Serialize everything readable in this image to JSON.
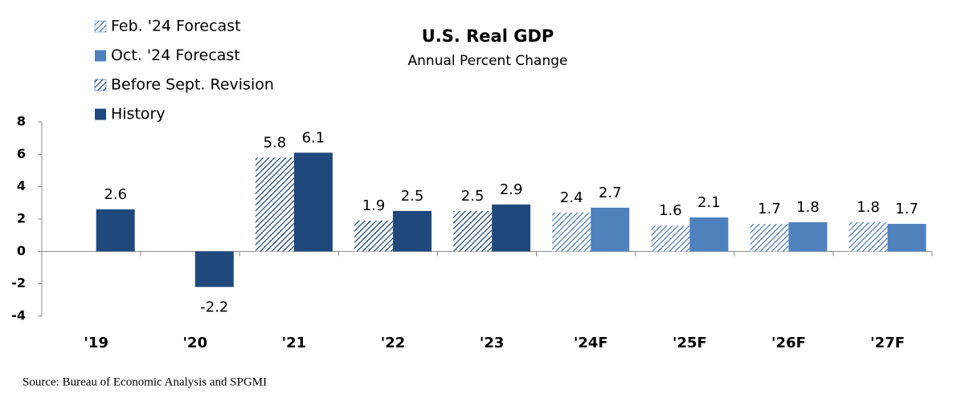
{
  "chart_data": {
    "type": "bar",
    "title": "U.S. Real GDP",
    "subtitle": "Annual Percent Change",
    "categories": [
      "'19",
      "'20",
      "'21",
      "'22",
      "'23",
      "'24F",
      "'25F",
      "'26F",
      "'27F"
    ],
    "series": [
      {
        "name": "Feb. '24 Forecast",
        "color": "#4f81bd",
        "hatch": true,
        "values": [
          null,
          null,
          null,
          null,
          null,
          2.4,
          1.6,
          1.7,
          1.8
        ]
      },
      {
        "name": "Oct. '24 Forecast",
        "color": "#4f81bd",
        "hatch": false,
        "values": [
          null,
          null,
          null,
          null,
          null,
          2.7,
          2.1,
          1.8,
          1.7
        ]
      },
      {
        "name": "Before Sept. Revision",
        "color": "#1f4e79",
        "hatch": true,
        "values": [
          null,
          null,
          5.8,
          1.9,
          2.5,
          null,
          null,
          null,
          null
        ]
      },
      {
        "name": "History",
        "color": "#1f497d",
        "hatch": false,
        "values": [
          2.6,
          -2.2,
          6.1,
          2.5,
          2.9,
          null,
          null,
          null,
          null
        ]
      }
    ],
    "ylim": [
      -4,
      8
    ],
    "yticks": [
      -4,
      -2,
      0,
      2,
      4,
      6,
      8
    ],
    "source": "Source:  Bureau of Economic Analysis and SPGMI"
  }
}
